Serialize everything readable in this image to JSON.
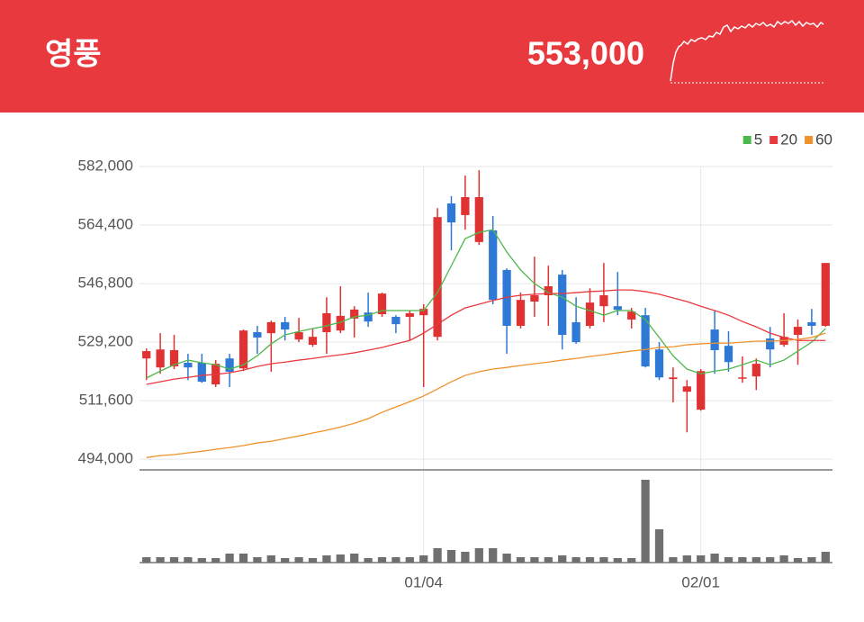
{
  "header": {
    "name": "영풍",
    "price": "553,000"
  },
  "chart_data": {
    "type": "candlestick",
    "categories": [
      null,
      null,
      null,
      null,
      null,
      null,
      null,
      null,
      null,
      null,
      null,
      null,
      null,
      null,
      null,
      null,
      null,
      null,
      null,
      null,
      "01/04",
      null,
      null,
      null,
      null,
      null,
      null,
      null,
      null,
      null,
      null,
      null,
      null,
      null,
      null,
      null,
      null,
      null,
      null,
      null,
      "02/01",
      null,
      null,
      null,
      null,
      null,
      null,
      null,
      null,
      null
    ],
    "open": [
      524300,
      521600,
      521900,
      523000,
      523000,
      516500,
      524300,
      521300,
      532200,
      531900,
      535200,
      530000,
      528400,
      532200,
      532700,
      536300,
      538100,
      537600,
      536800,
      536800,
      537300,
      530800,
      570900,
      567400,
      559300,
      562800,
      550900,
      534100,
      541400,
      543300,
      549500,
      535200,
      534100,
      540000,
      540000,
      536000,
      537300,
      527000,
      518100,
      514300,
      508900,
      533000,
      528100,
      518400,
      518900,
      530300,
      528400,
      531400,
      535200,
      534100
    ],
    "high": [
      527300,
      531900,
      531400,
      525700,
      525700,
      523800,
      525700,
      533000,
      534100,
      535700,
      536800,
      536500,
      533300,
      542700,
      546000,
      540000,
      544100,
      544100,
      537300,
      538700,
      540600,
      569500,
      573100,
      579300,
      580900,
      567100,
      551400,
      544100,
      554900,
      552200,
      550900,
      542700,
      545400,
      553000,
      550300,
      539500,
      539500,
      529200,
      521600,
      517800,
      521100,
      538700,
      532500,
      524900,
      524300,
      533800,
      537900,
      536000,
      539200,
      553000
    ],
    "low": [
      517800,
      519700,
      521100,
      517800,
      517000,
      515700,
      515700,
      520500,
      525700,
      520300,
      529700,
      529200,
      527800,
      525700,
      531900,
      530600,
      533800,
      536800,
      531900,
      529700,
      515700,
      529700,
      556800,
      563000,
      558400,
      540600,
      525700,
      533300,
      536800,
      534100,
      527000,
      528700,
      533300,
      535200,
      537300,
      533300,
      521600,
      517800,
      511100,
      502100,
      508600,
      519700,
      520300,
      517000,
      514800,
      521600,
      527800,
      522400,
      531400,
      533800
    ],
    "close": [
      526500,
      527000,
      526800,
      521600,
      517300,
      522700,
      520300,
      532700,
      530600,
      535200,
      533000,
      532200,
      530800,
      537900,
      537100,
      539000,
      535400,
      543800,
      534600,
      537900,
      539200,
      566800,
      565200,
      572800,
      572800,
      541900,
      534100,
      541900,
      543300,
      546000,
      531400,
      529200,
      541100,
      543300,
      538900,
      538400,
      521900,
      518600,
      518600,
      515900,
      520500,
      526800,
      523200,
      518600,
      522700,
      527000,
      530800,
      533800,
      534100,
      553000
    ],
    "series": [
      {
        "name": "5",
        "color": "#4cb84c",
        "values": [
          518400,
          520500,
          522400,
          523800,
          523000,
          522400,
          521100,
          522400,
          525100,
          528700,
          531400,
          532400,
          533300,
          534100,
          535200,
          536800,
          537300,
          538700,
          538700,
          538700,
          538700,
          544100,
          552200,
          560300,
          562200,
          563000,
          556300,
          550900,
          546800,
          544100,
          542700,
          540000,
          538700,
          537300,
          538700,
          538700,
          536000,
          530600,
          525100,
          521100,
          519700,
          520500,
          521100,
          522400,
          523800,
          522400,
          523800,
          526500,
          529200,
          533300
        ]
      },
      {
        "name": "20",
        "color": "#e8393e",
        "values": [
          516500,
          517300,
          518100,
          518600,
          519200,
          519500,
          520000,
          520800,
          521900,
          522700,
          523200,
          523800,
          524300,
          524900,
          525400,
          526000,
          526800,
          527600,
          528700,
          529700,
          531900,
          534600,
          537300,
          539500,
          540600,
          541700,
          542700,
          543300,
          543600,
          543800,
          543800,
          544100,
          544400,
          544600,
          544900,
          544900,
          544400,
          543600,
          542500,
          541400,
          540000,
          538700,
          537300,
          535400,
          533800,
          531900,
          530600,
          529700,
          529700,
          529700
        ]
      },
      {
        "name": "60",
        "color": "#f0922c",
        "values": [
          494500,
          495100,
          495400,
          495900,
          496400,
          497000,
          497500,
          498100,
          498900,
          499400,
          500200,
          501000,
          501900,
          502700,
          503700,
          504800,
          506200,
          508100,
          509700,
          511300,
          513000,
          515100,
          517300,
          519200,
          520300,
          521100,
          521600,
          522200,
          522700,
          523200,
          523800,
          524300,
          524900,
          525400,
          526000,
          526500,
          527000,
          527600,
          527800,
          528400,
          528700,
          528900,
          528900,
          529200,
          529500,
          529500,
          529700,
          530000,
          530600,
          531900
        ]
      }
    ],
    "volume": [
      6,
      6,
      6,
      6,
      5,
      5,
      10,
      10,
      6,
      8,
      5,
      6,
      5,
      8,
      9,
      10,
      5,
      6,
      6,
      6,
      8,
      16,
      14,
      12,
      16,
      16,
      10,
      6,
      6,
      6,
      8,
      6,
      6,
      6,
      5,
      5,
      92,
      37,
      6,
      8,
      8,
      10,
      6,
      6,
      6,
      6,
      8,
      5,
      6,
      12
    ],
    "ylim": [
      490800,
      582000
    ],
    "yticks": [
      {
        "value": 494000,
        "label": "494,000"
      },
      {
        "value": 511600,
        "label": "511,600"
      },
      {
        "value": 529200,
        "label": "529,200"
      },
      {
        "value": 546800,
        "label": "546,800"
      },
      {
        "value": 564400,
        "label": "564,400"
      },
      {
        "value": 582000,
        "label": "582,000"
      }
    ],
    "up_color": "#e03232",
    "down_color": "#2f79d6",
    "volume_color": "#6f6f6f",
    "grid": true,
    "legend": "top-right"
  }
}
